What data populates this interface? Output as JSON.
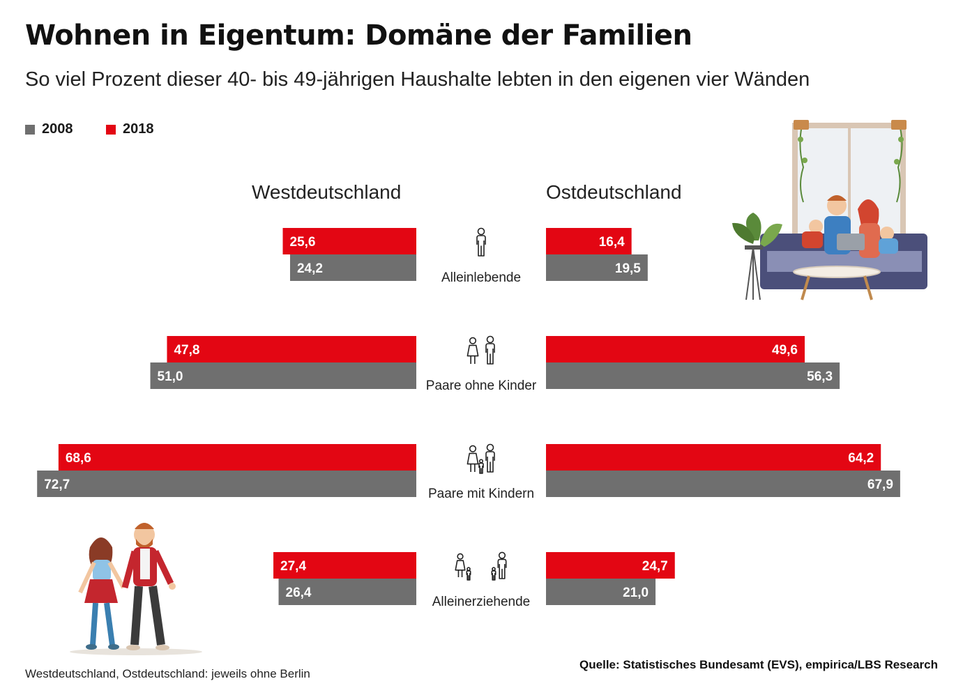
{
  "title": "Wohnen in Eigentum: Domäne der Familien",
  "subtitle": "So viel Prozent dieser 40- bis 49-jährigen Haushalte lebten in den eigenen vier Wänden",
  "legend": [
    {
      "label": "2008",
      "color": "#6f6f6f"
    },
    {
      "label": "2018",
      "color": "#e30613"
    }
  ],
  "regions": {
    "west": "Westdeutschland",
    "east": "Ostdeutschland"
  },
  "footnote": "Westdeutschland, Ostdeutschland: jeweils ohne Berlin",
  "source": "Quelle: Statistisches Bundesamt (EVS), empirica/LBS Research",
  "chart_data": {
    "type": "bar",
    "orientation": "horizontal-butterfly",
    "categories": [
      "Alleinlebende",
      "Paare ohne Kinder",
      "Paare mit Kindern",
      "Alleinerziehende"
    ],
    "category_icons": [
      "single-person-icon",
      "couple-icon",
      "family-icon",
      "single-parent-icon"
    ],
    "panels": [
      {
        "name": "Westdeutschland",
        "series": [
          {
            "name": "2018",
            "color": "#e30613",
            "values": [
              25.6,
              47.8,
              68.6,
              27.4
            ],
            "labels": [
              "25,6",
              "47,8",
              "68,6",
              "27,4"
            ]
          },
          {
            "name": "2008",
            "color": "#6f6f6f",
            "values": [
              24.2,
              51.0,
              72.7,
              26.4
            ],
            "labels": [
              "24,2",
              "51,0",
              "72,7",
              "26,4"
            ]
          }
        ]
      },
      {
        "name": "Ostdeutschland",
        "series": [
          {
            "name": "2018",
            "color": "#e30613",
            "values": [
              16.4,
              49.6,
              64.2,
              24.7
            ],
            "labels": [
              "16,4",
              "49,6",
              "64,2",
              "24,7"
            ]
          },
          {
            "name": "2008",
            "color": "#6f6f6f",
            "values": [
              19.5,
              56.3,
              67.9,
              21.0
            ],
            "labels": [
              "19,5",
              "56,3",
              "67,9",
              "21,0"
            ]
          }
        ]
      }
    ],
    "xlim": [
      0,
      75
    ],
    "unit": "Prozent"
  }
}
